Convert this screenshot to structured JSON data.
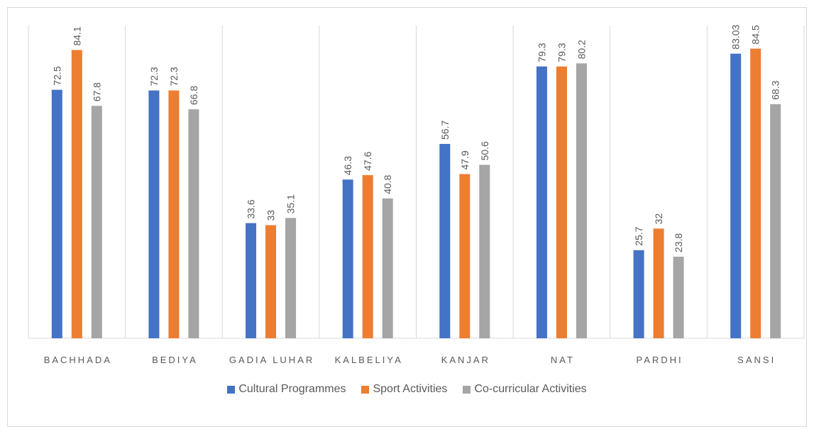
{
  "chart_data": {
    "type": "bar",
    "categories": [
      "BACHHADA",
      "BEDIYA",
      "GADIA LUHAR",
      "KALBELIYA",
      "KANJAR",
      "NAT",
      "PARDHI",
      "SANSI"
    ],
    "series": [
      {
        "name": "Cultural Programmes",
        "color": "#4472c4",
        "values": [
          72.5,
          72.3,
          33.6,
          46.3,
          56.7,
          79.3,
          25.7,
          83.03
        ]
      },
      {
        "name": "Sport Activities",
        "color": "#ed7d31",
        "values": [
          84.1,
          72.3,
          33,
          47.6,
          47.9,
          79.3,
          32,
          84.5
        ]
      },
      {
        "name": "Co-curricular Activities",
        "color": "#a5a5a5",
        "values": [
          67.8,
          66.8,
          35.1,
          40.8,
          50.6,
          80.2,
          23.8,
          68.3
        ]
      }
    ],
    "ylim": [
      0,
      90
    ],
    "legend": "bottom"
  }
}
